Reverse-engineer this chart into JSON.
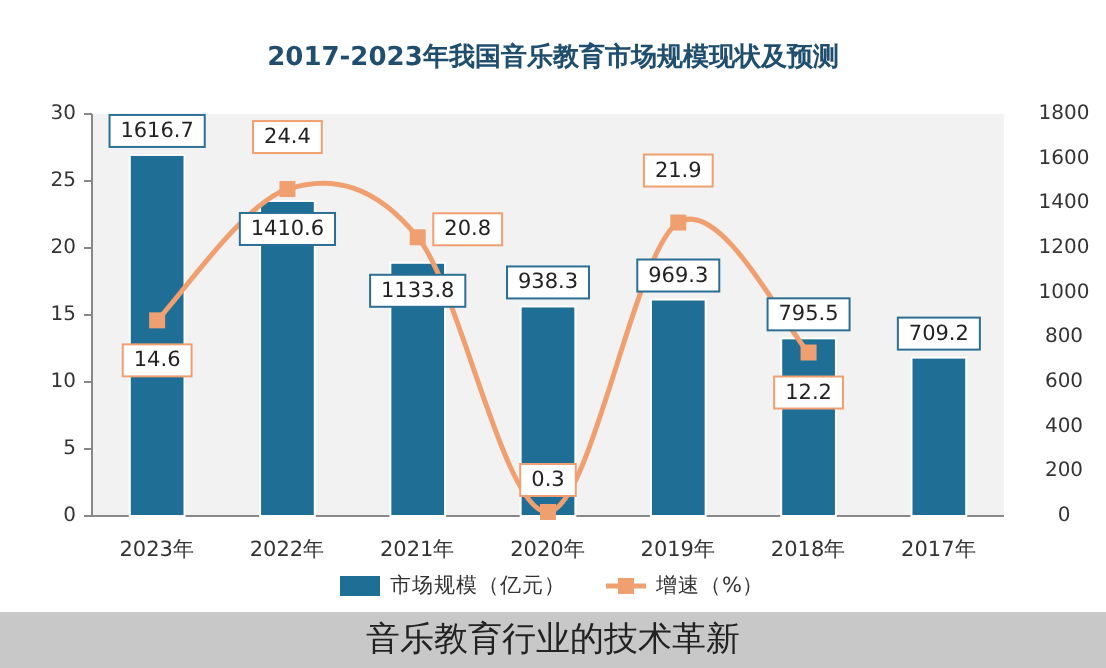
{
  "chart_data": {
    "type": "bar",
    "title": "2017-2023年我国音乐教育市场规模现状及预测",
    "categories": [
      "2023年",
      "2022年",
      "2021年",
      "2020年",
      "2019年",
      "2018年",
      "2017年"
    ],
    "series": [
      {
        "name": "市场规模（亿元）",
        "axis": "y2",
        "color": "#1f6e96",
        "values": [
          1616.7,
          1410.6,
          1133.8,
          938.3,
          969.3,
          795.5,
          709.2
        ]
      },
      {
        "name": "增速（%）",
        "type": "line",
        "color": "#f0a070",
        "marker": "square",
        "values": [
          14.6,
          24.4,
          20.8,
          0.3,
          21.9,
          12.2,
          null
        ]
      }
    ],
    "ylim": [
      0,
      30
    ],
    "yticks": [
      0,
      5,
      10,
      15,
      20,
      25,
      30
    ],
    "y2lim": [
      0,
      1800
    ],
    "y2ticks": [
      0,
      200,
      400,
      600,
      800,
      1000,
      1200,
      1400,
      1600,
      1800
    ],
    "data_labels": true,
    "legend": "bottom",
    "annotations": [
      "音乐教育行业的技术革新"
    ]
  }
}
